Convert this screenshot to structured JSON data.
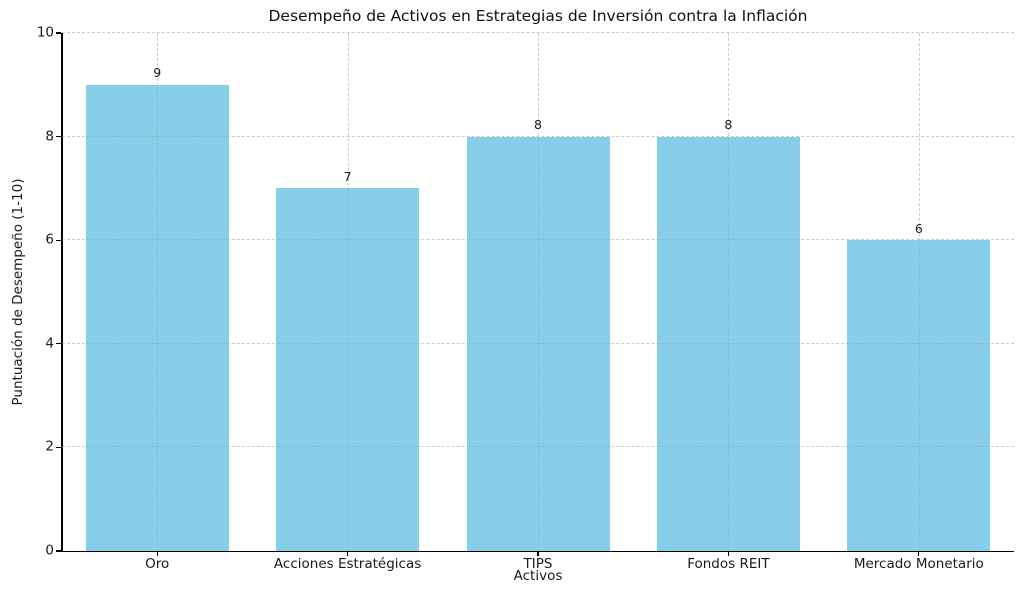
{
  "chart_data": {
    "type": "bar",
    "title": "Desempeño de Activos en Estrategias de Inversión contra la Inflación",
    "xlabel": "Activos",
    "ylabel": "Puntuación de Desempeño (1-10)",
    "categories": [
      "Oro",
      "Acciones Estratégicas",
      "TIPS",
      "Fondos REIT",
      "Mercado Monetario"
    ],
    "values": [
      9,
      7,
      8,
      8,
      6
    ],
    "bar_value_labels": [
      "9",
      "7",
      "8",
      "8",
      "6"
    ],
    "ylim": [
      0,
      10
    ],
    "yticks": [
      0,
      2,
      4,
      6,
      8,
      10
    ],
    "bar_color": "#87CEEB",
    "grid": "dashed-both-axes",
    "legend": false
  }
}
